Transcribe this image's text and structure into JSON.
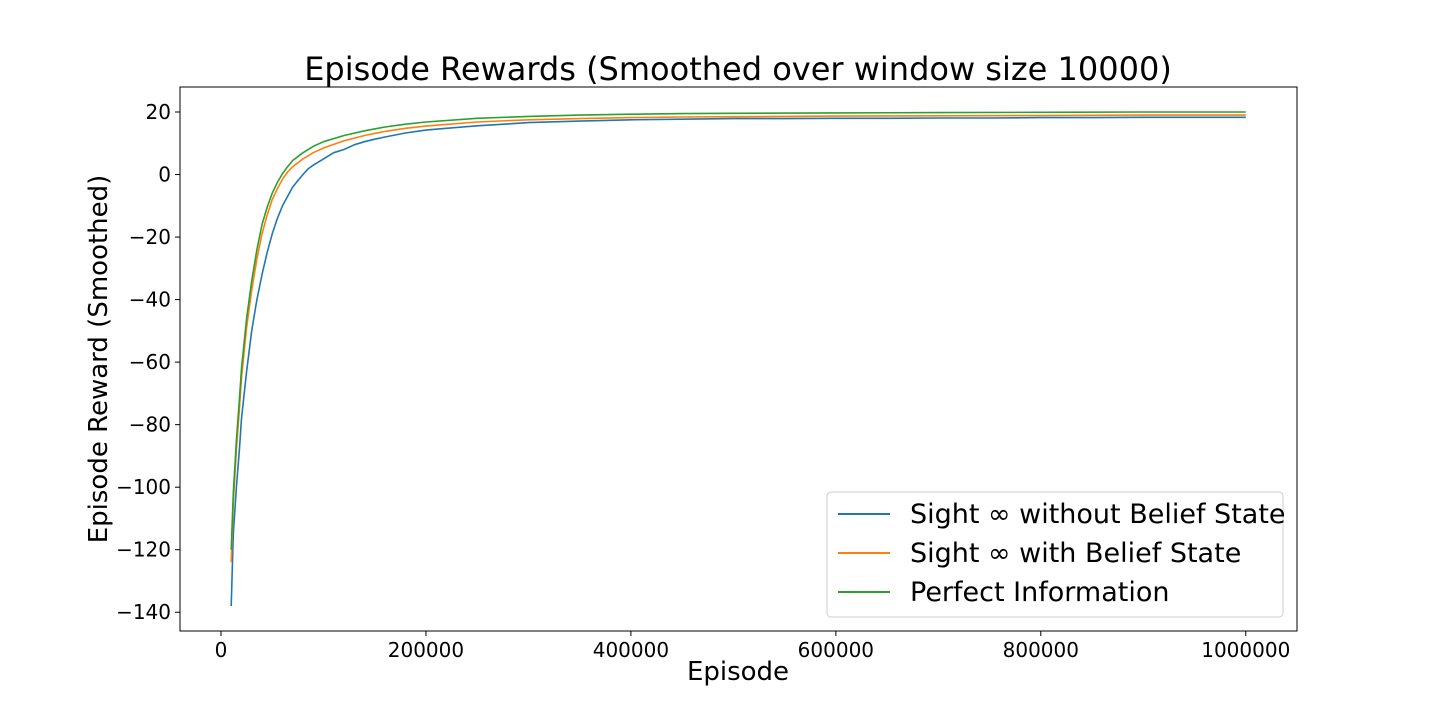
{
  "chart_data": {
    "type": "line",
    "title": "Episode Rewards (Smoothed over window size 10000)",
    "xlabel": "Episode",
    "ylabel": "Episode Reward (Smoothed)",
    "xlim": [
      -40000,
      1050000
    ],
    "ylim": [
      -146,
      28
    ],
    "xticks": [
      0,
      200000,
      400000,
      600000,
      800000,
      1000000
    ],
    "xtick_labels": [
      "0",
      "200000",
      "400000",
      "600000",
      "800000",
      "1000000"
    ],
    "yticks": [
      -140,
      -120,
      -100,
      -80,
      -60,
      -40,
      -20,
      0,
      20
    ],
    "ytick_labels": [
      "−140",
      "−120",
      "−100",
      "−80",
      "−60",
      "−40",
      "−20",
      "0",
      "20"
    ],
    "grid": false,
    "legend_position": "lower-right",
    "series": [
      {
        "name": "Sight ∞ without Belief State",
        "color": "#1f77b4",
        "points": [
          [
            10000,
            -138
          ],
          [
            12000,
            -115
          ],
          [
            15000,
            -100
          ],
          [
            18000,
            -88
          ],
          [
            20000,
            -78
          ],
          [
            25000,
            -63
          ],
          [
            30000,
            -50
          ],
          [
            35000,
            -40
          ],
          [
            40000,
            -32
          ],
          [
            45000,
            -25
          ],
          [
            50000,
            -19
          ],
          [
            55000,
            -14
          ],
          [
            60000,
            -10
          ],
          [
            65000,
            -7
          ],
          [
            70000,
            -4
          ],
          [
            75000,
            -2
          ],
          [
            80000,
            0
          ],
          [
            85000,
            1.8
          ],
          [
            90000,
            3
          ],
          [
            100000,
            5
          ],
          [
            110000,
            7
          ],
          [
            120000,
            8
          ],
          [
            130000,
            9.5
          ],
          [
            140000,
            10.5
          ],
          [
            150000,
            11.3
          ],
          [
            160000,
            12
          ],
          [
            180000,
            13.3
          ],
          [
            200000,
            14.2
          ],
          [
            220000,
            14.8
          ],
          [
            250000,
            15.6
          ],
          [
            280000,
            16.2
          ],
          [
            300000,
            16.6
          ],
          [
            350000,
            17.1
          ],
          [
            400000,
            17.5
          ],
          [
            450000,
            17.7
          ],
          [
            500000,
            17.9
          ],
          [
            550000,
            17.9
          ],
          [
            600000,
            18
          ],
          [
            650000,
            18
          ],
          [
            700000,
            18.1
          ],
          [
            750000,
            18.1
          ],
          [
            800000,
            18.2
          ],
          [
            850000,
            18.2
          ],
          [
            900000,
            18.3
          ],
          [
            950000,
            18.3
          ],
          [
            1000000,
            18.3
          ]
        ]
      },
      {
        "name": "Sight ∞ with Belief State",
        "color": "#ff7f0e",
        "points": [
          [
            10000,
            -124
          ],
          [
            12000,
            -105
          ],
          [
            15000,
            -88
          ],
          [
            18000,
            -75
          ],
          [
            20000,
            -65
          ],
          [
            25000,
            -49
          ],
          [
            30000,
            -37
          ],
          [
            35000,
            -27
          ],
          [
            40000,
            -19
          ],
          [
            45000,
            -13
          ],
          [
            50000,
            -8
          ],
          [
            55000,
            -4.5
          ],
          [
            60000,
            -1.5
          ],
          [
            65000,
            0.8
          ],
          [
            70000,
            2.5
          ],
          [
            80000,
            5
          ],
          [
            90000,
            7
          ],
          [
            100000,
            8.5
          ],
          [
            120000,
            10.8
          ],
          [
            140000,
            12.5
          ],
          [
            160000,
            13.8
          ],
          [
            180000,
            14.8
          ],
          [
            200000,
            15.5
          ],
          [
            250000,
            16.8
          ],
          [
            300000,
            17.5
          ],
          [
            350000,
            17.9
          ],
          [
            400000,
            18.2
          ],
          [
            450000,
            18.4
          ],
          [
            500000,
            18.5
          ],
          [
            600000,
            18.7
          ],
          [
            700000,
            18.8
          ],
          [
            800000,
            18.9
          ],
          [
            900000,
            19
          ],
          [
            1000000,
            19
          ]
        ]
      },
      {
        "name": "Perfect Information",
        "color": "#2ca02c",
        "points": [
          [
            10000,
            -120
          ],
          [
            12000,
            -102
          ],
          [
            15000,
            -85
          ],
          [
            18000,
            -72
          ],
          [
            20000,
            -62
          ],
          [
            25000,
            -46
          ],
          [
            30000,
            -34
          ],
          [
            35000,
            -24
          ],
          [
            40000,
            -16
          ],
          [
            45000,
            -10.5
          ],
          [
            50000,
            -6
          ],
          [
            55000,
            -2.5
          ],
          [
            60000,
            0.3
          ],
          [
            65000,
            2.5
          ],
          [
            70000,
            4.5
          ],
          [
            80000,
            7
          ],
          [
            90000,
            9
          ],
          [
            100000,
            10.5
          ],
          [
            120000,
            12.5
          ],
          [
            140000,
            14
          ],
          [
            160000,
            15.2
          ],
          [
            180000,
            16.1
          ],
          [
            200000,
            16.8
          ],
          [
            250000,
            18
          ],
          [
            300000,
            18.6
          ],
          [
            350000,
            19
          ],
          [
            400000,
            19.3
          ],
          [
            450000,
            19.5
          ],
          [
            500000,
            19.6
          ],
          [
            600000,
            19.7
          ],
          [
            700000,
            19.8
          ],
          [
            800000,
            19.9
          ],
          [
            900000,
            20
          ],
          [
            1000000,
            20
          ]
        ]
      }
    ]
  }
}
